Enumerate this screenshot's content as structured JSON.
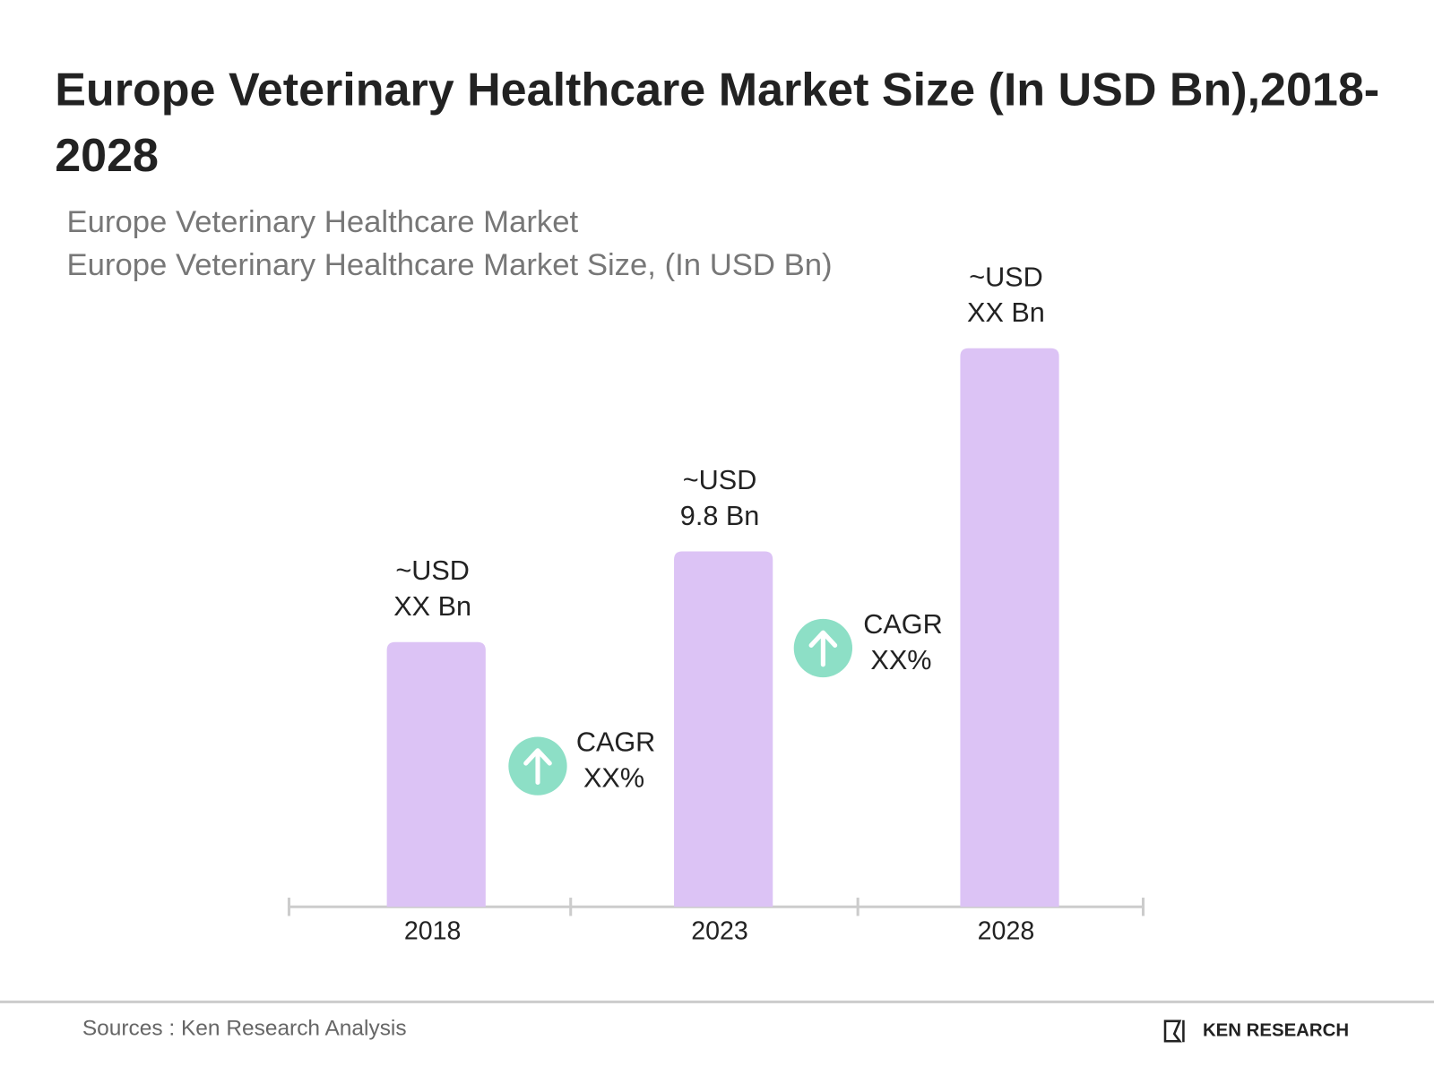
{
  "chart_data": {
    "type": "bar",
    "title": "Europe Veterinary Healthcare Market Size (In USD Bn),2018-2028",
    "subtitle": [
      "Europe Veterinary Healthcare Market",
      "Europe Veterinary Healthcare Market Size, (In USD Bn)"
    ],
    "categories": [
      "2018",
      "2023",
      "2028"
    ],
    "values": [
      7.3,
      9.8,
      15.4
    ],
    "value_labels": [
      [
        "~USD",
        "XX Bn"
      ],
      [
        "~USD",
        "9.8 Bn"
      ],
      [
        "~USD",
        "XX Bn"
      ]
    ],
    "color": "#dcc3f5",
    "annotations": [
      {
        "text": [
          "CAGR",
          "XX%"
        ],
        "color": "#8ddfc6"
      },
      {
        "text": [
          "CAGR",
          "XX%"
        ],
        "color": "#8ddfc6"
      }
    ],
    "source": "Sources : Ken Research Analysis",
    "logo": "KEN RESEARCH"
  }
}
